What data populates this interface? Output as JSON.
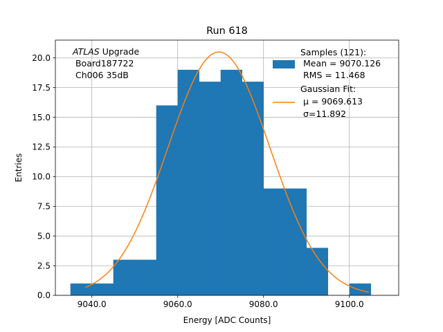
{
  "chart_data": {
    "type": "bar",
    "title": "Run 618",
    "xlabel": "Energy [ADC Counts]",
    "ylabel": "Entries",
    "xlim": [
      9031.5,
      9111.5
    ],
    "ylim": [
      0,
      21.5
    ],
    "grid": true,
    "xticks": [
      9040,
      9060,
      9080,
      9100
    ],
    "xtick_labels": [
      "9040.0",
      "9060.0",
      "9080.0",
      "9100.0"
    ],
    "yticks": [
      0,
      2.5,
      5,
      7.5,
      10,
      12.5,
      15,
      17.5,
      20
    ],
    "ytick_labels": [
      "0.0",
      "2.5",
      "5.0",
      "7.5",
      "10.0",
      "12.5",
      "15.0",
      "17.5",
      "20.0"
    ],
    "bin_edges": [
      9035,
      9040,
      9045,
      9050,
      9055,
      9060,
      9065,
      9070,
      9075,
      9080,
      9085,
      9090,
      9095,
      9100,
      9105
    ],
    "counts": [
      1,
      1,
      3,
      3,
      16,
      19,
      18,
      19,
      18,
      9,
      9,
      4,
      0,
      1
    ],
    "fit": {
      "mu": 9069.613,
      "sigma": 11.892,
      "amplitude": 20.5,
      "x_range": [
        9038.5,
        9104.5
      ]
    },
    "histogram_color": "#1f77b4",
    "fit_color": "#ff7f0e",
    "annotation": {
      "experiment": "ATLAS",
      "suffix": " Upgrade",
      "lines": [
        " Board187722",
        " Ch006 35dB"
      ]
    },
    "legend": {
      "location": "top-right",
      "entries": [
        {
          "lines": [
            "Samples (121):",
            " Mean = 9070.126",
            " RMS = 11.468"
          ]
        },
        {
          "lines": [
            "Gaussian Fit:",
            " μ = 9069.613",
            " σ=11.892"
          ]
        }
      ]
    }
  }
}
